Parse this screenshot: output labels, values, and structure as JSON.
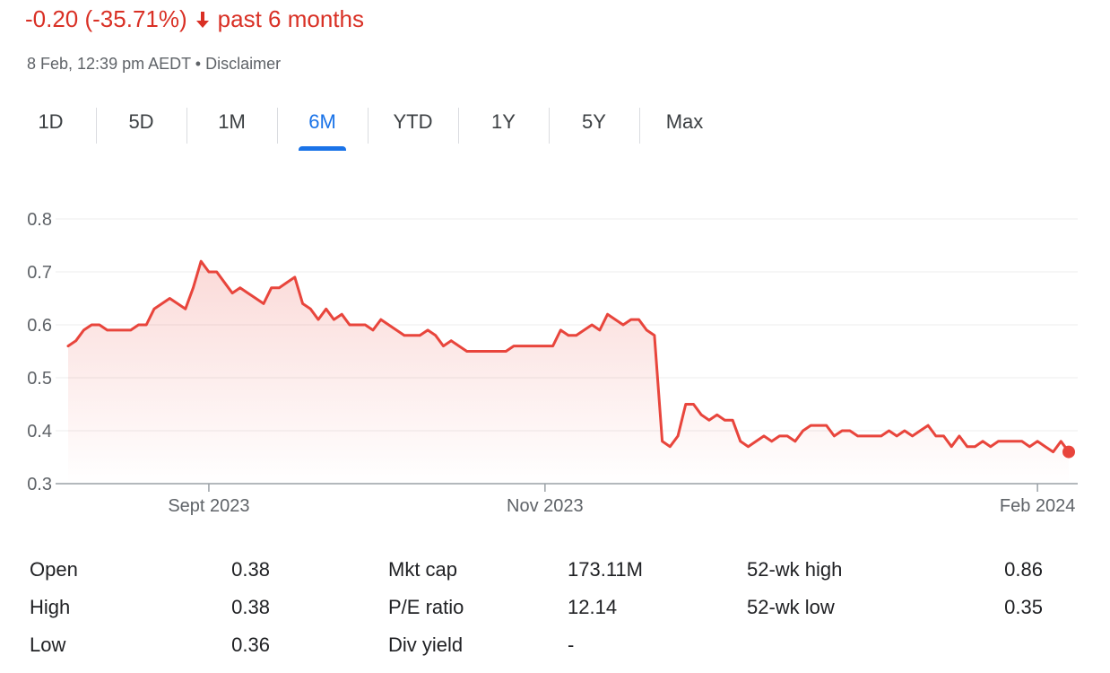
{
  "header": {
    "change": "-0.20 (-35.71%)",
    "period": "past 6 months",
    "timestamp": "8 Feb, 12:39 pm AEDT",
    "separator": "•",
    "disclaimer": "Disclaimer"
  },
  "tabs": [
    {
      "label": "1D"
    },
    {
      "label": "5D"
    },
    {
      "label": "1M"
    },
    {
      "label": "6M"
    },
    {
      "label": "YTD"
    },
    {
      "label": "1Y"
    },
    {
      "label": "5Y"
    },
    {
      "label": "Max"
    }
  ],
  "active_tab": "6M",
  "colors": {
    "line": "#e8453c",
    "negative": "#d93025",
    "accent": "#1a73e8",
    "grid": "#ececec",
    "axis_text": "#5f6368"
  },
  "chart_data": {
    "type": "area",
    "ylim": [
      0.3,
      0.8
    ],
    "yticks": [
      0.3,
      0.4,
      0.5,
      0.6,
      0.7,
      0.8
    ],
    "ytick_labels": [
      "0.3",
      "0.4",
      "0.5",
      "0.6",
      "0.7",
      "0.8"
    ],
    "xticks": [
      {
        "label": "Sept 2023",
        "index": 18
      },
      {
        "label": "Nov 2023",
        "index": 61
      },
      {
        "label": "Feb 2024",
        "index": 124
      }
    ],
    "grid": true,
    "series": [
      {
        "values": [
          0.56,
          0.57,
          0.59,
          0.6,
          0.6,
          0.59,
          0.59,
          0.59,
          0.59,
          0.6,
          0.6,
          0.63,
          0.64,
          0.65,
          0.64,
          0.63,
          0.67,
          0.72,
          0.7,
          0.7,
          0.68,
          0.66,
          0.67,
          0.66,
          0.65,
          0.64,
          0.67,
          0.67,
          0.68,
          0.69,
          0.64,
          0.63,
          0.61,
          0.63,
          0.61,
          0.62,
          0.6,
          0.6,
          0.6,
          0.59,
          0.61,
          0.6,
          0.59,
          0.58,
          0.58,
          0.58,
          0.59,
          0.58,
          0.56,
          0.57,
          0.56,
          0.55,
          0.55,
          0.55,
          0.55,
          0.55,
          0.55,
          0.56,
          0.56,
          0.56,
          0.56,
          0.56,
          0.56,
          0.59,
          0.58,
          0.58,
          0.59,
          0.6,
          0.59,
          0.62,
          0.61,
          0.6,
          0.61,
          0.61,
          0.59,
          0.58,
          0.38,
          0.37,
          0.39,
          0.45,
          0.45,
          0.43,
          0.42,
          0.43,
          0.42,
          0.42,
          0.38,
          0.37,
          0.38,
          0.39,
          0.38,
          0.39,
          0.39,
          0.38,
          0.4,
          0.41,
          0.41,
          0.41,
          0.39,
          0.4,
          0.4,
          0.39,
          0.39,
          0.39,
          0.39,
          0.4,
          0.39,
          0.4,
          0.39,
          0.4,
          0.41,
          0.39,
          0.39,
          0.37,
          0.39,
          0.37,
          0.37,
          0.38,
          0.37,
          0.38,
          0.38,
          0.38,
          0.38,
          0.37,
          0.38,
          0.37,
          0.36,
          0.38,
          0.36
        ]
      }
    ]
  },
  "stats": [
    {
      "label": "Open",
      "value": "0.38"
    },
    {
      "label": "High",
      "value": "0.38"
    },
    {
      "label": "Low",
      "value": "0.36"
    },
    {
      "label": "Mkt cap",
      "value": "173.11M"
    },
    {
      "label": "P/E ratio",
      "value": "12.14"
    },
    {
      "label": "Div yield",
      "value": "-"
    },
    {
      "label": "52-wk high",
      "value": "0.86"
    },
    {
      "label": "52-wk low",
      "value": "0.35"
    }
  ]
}
